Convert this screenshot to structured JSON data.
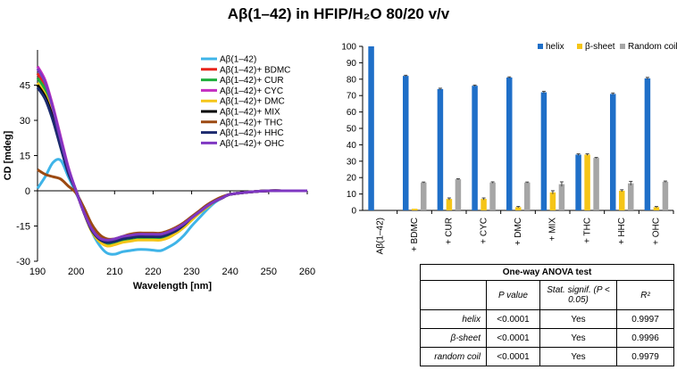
{
  "title": "Aβ(1–42) in HFIP/H₂O 80/20 v/v",
  "colors": {
    "helix": "#1f6fc8",
    "beta": "#f5c518",
    "coil": "#a6a6a6"
  },
  "chart_data": [
    {
      "type": "line",
      "xlabel": "Wavelength [nm]",
      "ylabel": "CD [mdeg]",
      "xlim": [
        190,
        260
      ],
      "ylim": [
        -30,
        60
      ],
      "xticks": [
        190,
        200,
        210,
        220,
        230,
        240,
        250,
        260
      ],
      "yticks": [
        45,
        30,
        15,
        0,
        -15,
        -30
      ],
      "legend": "top-right",
      "series": [
        {
          "name": "Aβ(1–42)",
          "color": "#3fb4e8",
          "x": [
            190,
            192,
            194,
            196,
            198,
            200,
            202,
            204,
            206,
            208,
            210,
            212,
            214,
            216,
            218,
            220,
            222,
            224,
            226,
            228,
            230,
            232,
            234,
            236,
            238,
            240,
            245,
            250,
            255,
            260
          ],
          "y": [
            1,
            6,
            12,
            13,
            6,
            -1,
            -8,
            -17,
            -23,
            -26.5,
            -27,
            -26,
            -25.5,
            -25,
            -25,
            -25.3,
            -25.5,
            -24,
            -22,
            -19,
            -15,
            -11.5,
            -8,
            -5,
            -3,
            -1.5,
            -0.5,
            0,
            0,
            0
          ]
        },
        {
          "name": "Aβ(1–42)+ BDMC",
          "color": "#e8241b",
          "x": [
            190,
            192,
            194,
            196,
            198,
            200,
            202,
            204,
            206,
            208,
            210,
            212,
            214,
            216,
            218,
            220,
            222,
            224,
            226,
            228,
            230,
            232,
            234,
            236,
            238,
            240,
            245,
            250,
            255,
            260
          ],
          "y": [
            50,
            44,
            34,
            22,
            9,
            0,
            -9,
            -17,
            -21,
            -22.5,
            -22,
            -21,
            -20.5,
            -20,
            -20,
            -20,
            -20,
            -19,
            -17.5,
            -15,
            -12,
            -9,
            -6.5,
            -4.5,
            -3,
            -1.5,
            -0.5,
            0,
            0,
            0
          ]
        },
        {
          "name": "Aβ(1–42)+ CUR",
          "color": "#1fae3c",
          "x": [
            190,
            192,
            194,
            196,
            198,
            200,
            202,
            204,
            206,
            208,
            210,
            212,
            214,
            216,
            218,
            220,
            222,
            224,
            226,
            228,
            230,
            232,
            234,
            236,
            238,
            240,
            245,
            250,
            255,
            260
          ],
          "y": [
            48,
            43,
            33,
            21,
            9,
            0,
            -9,
            -17,
            -21.5,
            -23,
            -22.5,
            -21.5,
            -21,
            -20.5,
            -20.5,
            -20.5,
            -20.5,
            -19.5,
            -18,
            -15.5,
            -12.5,
            -9.5,
            -7,
            -4.5,
            -3,
            -1.5,
            -0.5,
            0,
            0,
            0
          ]
        },
        {
          "name": "Aβ(1–42)+ CYC",
          "color": "#c42ec1",
          "x": [
            190,
            192,
            194,
            196,
            198,
            200,
            202,
            204,
            206,
            208,
            210,
            212,
            214,
            216,
            218,
            220,
            222,
            224,
            226,
            228,
            230,
            232,
            234,
            236,
            238,
            240,
            245,
            250,
            255,
            260
          ],
          "y": [
            53,
            47,
            36,
            23,
            10,
            0,
            -9,
            -16,
            -20,
            -21.5,
            -21,
            -20,
            -19.5,
            -19,
            -19,
            -19,
            -19,
            -18,
            -16.5,
            -14.5,
            -11.5,
            -9,
            -6.5,
            -4.5,
            -3,
            -1.5,
            -0.5,
            0,
            0,
            0
          ]
        },
        {
          "name": "Aβ(1–42)+ DMC",
          "color": "#f5c518",
          "x": [
            190,
            192,
            194,
            196,
            198,
            200,
            202,
            204,
            206,
            208,
            210,
            212,
            214,
            216,
            218,
            220,
            222,
            224,
            226,
            228,
            230,
            232,
            234,
            236,
            238,
            240,
            245,
            250,
            255,
            260
          ],
          "y": [
            46,
            41,
            32,
            20,
            8,
            0,
            -9,
            -17,
            -21.5,
            -23.5,
            -23,
            -22,
            -21.5,
            -21,
            -21,
            -21,
            -21,
            -20,
            -18,
            -15.5,
            -12.5,
            -9.5,
            -7,
            -4.5,
            -3,
            -1.5,
            -0.5,
            0,
            0,
            0
          ]
        },
        {
          "name": "Aβ(1–42)+ MIX",
          "color": "#000000",
          "x": [
            190,
            192,
            194,
            196,
            198,
            200,
            202,
            204,
            206,
            208,
            210,
            212,
            214,
            216,
            218,
            220,
            222,
            224,
            226,
            228,
            230,
            232,
            234,
            236,
            238,
            240,
            245,
            250,
            255,
            260
          ],
          "y": [
            45,
            40,
            31,
            19,
            8,
            0,
            -9,
            -16.5,
            -20.5,
            -22,
            -21.5,
            -20.5,
            -20,
            -19.5,
            -19.5,
            -19.5,
            -19.5,
            -18.5,
            -17,
            -14.5,
            -11.5,
            -9,
            -6.5,
            -4.5,
            -3,
            -1.5,
            -0.5,
            0,
            0,
            0
          ]
        },
        {
          "name": "Aβ(1–42)+ THC",
          "color": "#9c4a12",
          "x": [
            190,
            192,
            194,
            196,
            198,
            200,
            202,
            204,
            206,
            208,
            210,
            212,
            214,
            216,
            218,
            220,
            222,
            224,
            226,
            228,
            230,
            232,
            234,
            236,
            238,
            240,
            245,
            250,
            255,
            260
          ],
          "y": [
            9,
            7,
            6,
            5,
            2,
            -1,
            -7,
            -14,
            -18.5,
            -20.5,
            -20.5,
            -19.5,
            -18.5,
            -18,
            -18,
            -18,
            -18,
            -17,
            -15.5,
            -13.5,
            -11,
            -8.5,
            -6,
            -4,
            -2.5,
            -1.5,
            -0.5,
            0,
            0,
            0
          ]
        },
        {
          "name": "Aβ(1–42)+ HHC",
          "color": "#1c2a6e",
          "x": [
            190,
            192,
            194,
            196,
            198,
            200,
            202,
            204,
            206,
            208,
            210,
            212,
            214,
            216,
            218,
            220,
            222,
            224,
            226,
            228,
            230,
            232,
            234,
            236,
            238,
            240,
            245,
            250,
            255,
            260
          ],
          "y": [
            44,
            39,
            30,
            18.5,
            7.5,
            0,
            -9,
            -16.5,
            -20.5,
            -22,
            -21.5,
            -20.5,
            -20,
            -19.5,
            -19.5,
            -19.5,
            -19.5,
            -18.5,
            -17,
            -14.5,
            -11.5,
            -9,
            -6.5,
            -4.5,
            -3,
            -1.5,
            -0.5,
            0,
            0,
            0
          ]
        },
        {
          "name": "Aβ(1–42)+ OHC",
          "color": "#7f37c2",
          "x": [
            190,
            192,
            194,
            196,
            198,
            200,
            202,
            204,
            206,
            208,
            210,
            212,
            214,
            216,
            218,
            220,
            222,
            224,
            226,
            228,
            230,
            232,
            234,
            236,
            238,
            240,
            245,
            250,
            255,
            260
          ],
          "y": [
            52,
            46,
            35,
            22,
            9.5,
            0,
            -9,
            -16,
            -20,
            -21,
            -20.5,
            -19.5,
            -19,
            -18.5,
            -18.5,
            -18.5,
            -18.5,
            -17.5,
            -16,
            -14,
            -11.5,
            -9,
            -6.5,
            -4.5,
            -3,
            -1.5,
            -0.5,
            0,
            0,
            0
          ]
        }
      ]
    },
    {
      "type": "bar",
      "ylim": [
        0,
        100
      ],
      "yticks": [
        0,
        10,
        20,
        30,
        40,
        50,
        60,
        70,
        80,
        90,
        100
      ],
      "legend": "top",
      "categories": [
        "Aβ(1–42)",
        "+ BDMC",
        "+ CUR",
        "+ CYC",
        "+ DMC",
        "+ MIX",
        "+ THC",
        "+ HHC",
        "+ OHC"
      ],
      "series": [
        {
          "name": "helix",
          "values": [
            100,
            82,
            74,
            76,
            81,
            72,
            34,
            71,
            80.5
          ],
          "errors": [
            0,
            0.4,
            0.5,
            0.4,
            0.4,
            0.6,
            0.5,
            0.6,
            0.6
          ]
        },
        {
          "name": "β-sheet",
          "values": [
            0,
            1,
            7,
            7,
            2,
            11,
            34,
            12,
            2
          ],
          "errors": [
            0,
            0,
            0.6,
            0.6,
            0.4,
            1,
            0.5,
            0.6,
            0.4
          ]
        },
        {
          "name": "Random coil",
          "values": [
            0,
            17,
            19,
            17,
            17,
            16,
            32,
            16.5,
            17.5
          ],
          "errors": [
            0,
            0.3,
            0.3,
            0.4,
            0.3,
            1.4,
            0.3,
            1.2,
            0.4
          ]
        }
      ]
    },
    {
      "type": "table",
      "caption": "One-way ANOVA test",
      "columns": [
        "",
        "P value",
        "Stat. signif. (P < 0.05)",
        "R²"
      ],
      "rows": [
        {
          "label": "helix",
          "p": "<0.0001",
          "signif": "Yes",
          "r2": "0.9997"
        },
        {
          "label": "β-sheet",
          "p": "<0.0001",
          "signif": "Yes",
          "r2": "0.9996"
        },
        {
          "label": "random coil",
          "p": "<0.0001",
          "signif": "Yes",
          "r2": "0.9979"
        }
      ]
    }
  ]
}
